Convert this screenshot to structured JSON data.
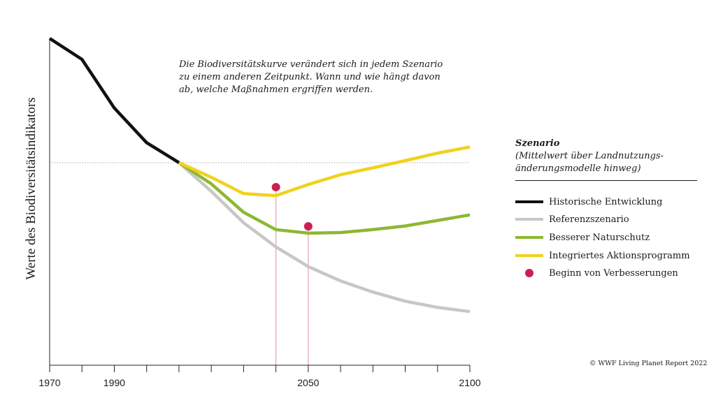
{
  "chart_data": {
    "type": "line",
    "title": "",
    "xlabel": "",
    "ylabel": "Werte des Biodiversitätsindikators",
    "xlim": [
      1970,
      2100
    ],
    "ylim": [
      0,
      100
    ],
    "x_tick_labels": [
      {
        "x": 1970,
        "label": "1970"
      },
      {
        "x": 1990,
        "label": "1990"
      },
      {
        "x": 2050,
        "label": "2050"
      },
      {
        "x": 2100,
        "label": "2100"
      }
    ],
    "x_minor_ticks": [
      1980,
      2000,
      2010,
      2020,
      2030,
      2040,
      2060,
      2070,
      2080,
      2090
    ],
    "reference_value": 62,
    "series": [
      {
        "name": "Historische Entwicklung",
        "color": "#111111",
        "points": [
          [
            1970,
            100
          ],
          [
            1980,
            93.6
          ],
          [
            1990,
            78.7
          ],
          [
            2000,
            68.1
          ],
          [
            2010,
            62
          ]
        ]
      },
      {
        "name": "Referenzszenario",
        "color": "#c8c7c3",
        "points": [
          [
            2010,
            62
          ],
          [
            2020,
            53.2
          ],
          [
            2030,
            43.6
          ],
          [
            2040,
            36.2
          ],
          [
            2050,
            30.2
          ],
          [
            2060,
            25.8
          ],
          [
            2070,
            22.4
          ],
          [
            2080,
            19.6
          ],
          [
            2090,
            17.7
          ],
          [
            2100,
            16.4
          ]
        ]
      },
      {
        "name": "Besserer Naturschutz",
        "color": "#8db832",
        "points": [
          [
            2010,
            62
          ],
          [
            2020,
            55.5
          ],
          [
            2030,
            46.8
          ],
          [
            2040,
            41.5
          ],
          [
            2050,
            40.4
          ],
          [
            2060,
            40.6
          ],
          [
            2070,
            41.5
          ],
          [
            2080,
            42.6
          ],
          [
            2090,
            44.3
          ],
          [
            2100,
            46
          ]
        ]
      },
      {
        "name": "Integriertes Aktionsprogramm",
        "color": "#f2d11b",
        "points": [
          [
            2010,
            62
          ],
          [
            2020,
            57.5
          ],
          [
            2030,
            52.5
          ],
          [
            2040,
            51.9
          ],
          [
            2050,
            55.3
          ],
          [
            2060,
            58.3
          ],
          [
            2070,
            60.4
          ],
          [
            2080,
            62.6
          ],
          [
            2090,
            64.9
          ],
          [
            2100,
            66.8
          ]
        ]
      }
    ],
    "markers": {
      "name": "Beginn von Verbesserungen",
      "color": "#cc1f4f",
      "points": [
        [
          2040,
          54.5
        ],
        [
          2050,
          42.5
        ]
      ]
    },
    "annotation": [
      "Die Biodiversitätskurve verändert sich in jedem Szenario",
      "zu einem anderen Zeitpunkt. Wann und wie hängt davon",
      "ab, welche Maßnahmen ergriffen werden."
    ],
    "grid": false
  },
  "legend": {
    "title": "Szenario",
    "subtitle_line1": "(Mittelwert über Landnutzungs-",
    "subtitle_line2": "änderungsmodelle hinweg)",
    "items": [
      {
        "label": "Historische Entwicklung",
        "color": "#111111",
        "kind": "line"
      },
      {
        "label": "Referenzszenario",
        "color": "#c8c7c3",
        "kind": "line"
      },
      {
        "label": "Besserer Naturschutz",
        "color": "#8db832",
        "kind": "line"
      },
      {
        "label": "Integriertes Aktionsprogramm",
        "color": "#f2d11b",
        "kind": "line"
      },
      {
        "label": "Beginn von Verbesserungen",
        "color": "#cc1f4f",
        "kind": "dot"
      }
    ]
  },
  "credit": "© WWF Living Planet Report 2022"
}
